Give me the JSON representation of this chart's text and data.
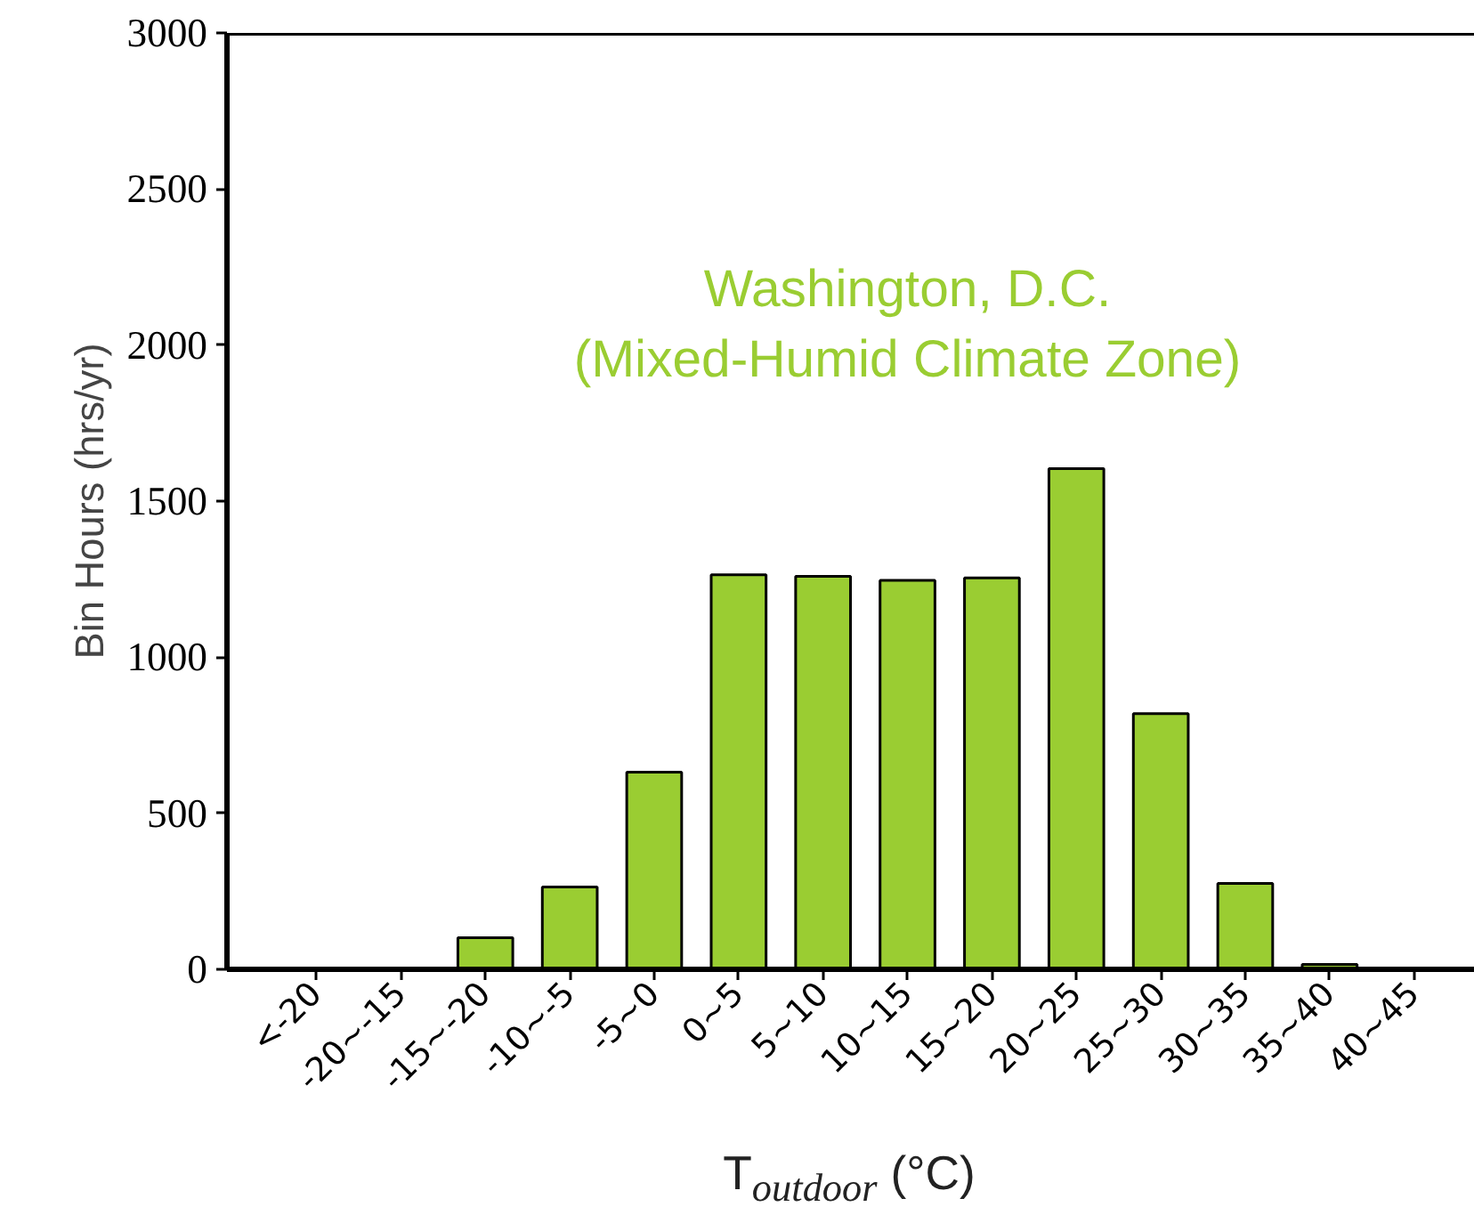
{
  "chart_data": {
    "type": "bar",
    "categories": [
      "<-20",
      "-20∼-15",
      "-15∼-20",
      "-10∼-5",
      "-5∼0",
      "0∼5",
      "5∼10",
      "10∼15",
      "15∼20",
      "20∼25",
      "25∼30",
      "30∼35",
      "35∼40",
      "40∼45"
    ],
    "values": [
      0,
      0,
      101,
      264,
      632,
      1264,
      1259,
      1246,
      1254,
      1604,
      819,
      275,
      16,
      0
    ],
    "color": "#9acd32",
    "ylim": [
      0,
      3000
    ],
    "yticks": [
      0,
      500,
      1000,
      1500,
      2000,
      2500,
      3000
    ],
    "xlabel": "T$_{outdoor}$ (°C)",
    "ylabel": "Bin Hours (hrs/yr)",
    "annotations": [
      "Washington, D.C.\n(Mixed-Humid Climate Zone)"
    ],
    "grid": false
  }
}
